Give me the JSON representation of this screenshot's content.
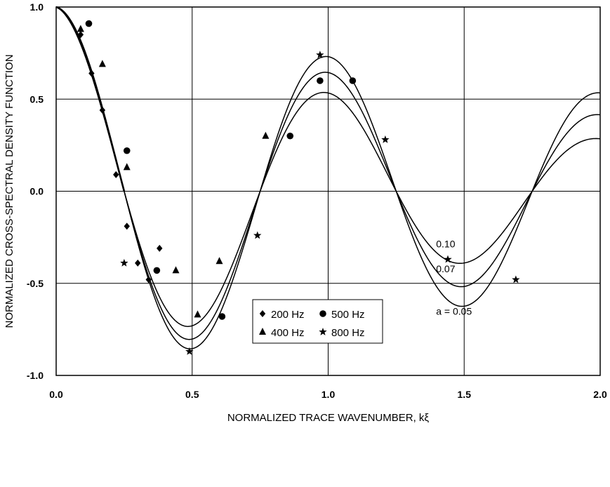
{
  "chart_data": {
    "type": "scatter",
    "title": "",
    "xlabel": "NORMALIZED TRACE WAVENUMBER, kξ",
    "ylabel": "NORMALIZED CROSS-SPECTRAL DENSITY FUNCTION",
    "xlim": [
      0.0,
      2.0
    ],
    "ylim": [
      -1.0,
      1.0
    ],
    "x_ticks": [
      0.0,
      0.5,
      1.0,
      1.5,
      2.0
    ],
    "x_tick_labels": [
      "0.0",
      "0.5",
      "1.0",
      "1.5",
      "2.0"
    ],
    "y_ticks": [
      -1.0,
      -0.5,
      0.0,
      0.5,
      1.0
    ],
    "y_tick_labels": [
      "-1.0",
      "-0.5",
      "0.0",
      "0.5",
      "1.0"
    ],
    "grid": true,
    "legend_position": "bottom-center",
    "curves": [
      {
        "param": 0.05,
        "label": "a = 0.05"
      },
      {
        "param": 0.07,
        "label": "0.07"
      },
      {
        "param": 0.1,
        "label": "0.10"
      }
    ],
    "series": [
      {
        "name": "200 Hz",
        "marker": "diamond",
        "points": [
          [
            0.09,
            0.85
          ],
          [
            0.13,
            0.64
          ],
          [
            0.17,
            0.44
          ],
          [
            0.22,
            0.09
          ],
          [
            0.26,
            -0.19
          ],
          [
            0.3,
            -0.39
          ],
          [
            0.34,
            -0.48
          ],
          [
            0.38,
            -0.31
          ]
        ]
      },
      {
        "name": "400 Hz",
        "marker": "triangle",
        "points": [
          [
            0.09,
            0.88
          ],
          [
            0.17,
            0.69
          ],
          [
            0.26,
            0.13
          ],
          [
            0.44,
            -0.43
          ],
          [
            0.52,
            -0.67
          ],
          [
            0.6,
            -0.38
          ],
          [
            0.77,
            0.3
          ]
        ]
      },
      {
        "name": "500 Hz",
        "marker": "circle",
        "points": [
          [
            0.12,
            0.91
          ],
          [
            0.26,
            0.22
          ],
          [
            0.37,
            -0.43
          ],
          [
            0.61,
            -0.68
          ],
          [
            0.86,
            0.3
          ],
          [
            0.97,
            0.6
          ],
          [
            1.09,
            0.6
          ]
        ]
      },
      {
        "name": "800 Hz",
        "marker": "star",
        "points": [
          [
            0.25,
            -0.39
          ],
          [
            0.49,
            -0.87
          ],
          [
            0.74,
            -0.24
          ],
          [
            0.97,
            0.74
          ],
          [
            1.21,
            0.28
          ],
          [
            1.44,
            -0.37
          ],
          [
            1.69,
            -0.48
          ]
        ]
      }
    ]
  }
}
